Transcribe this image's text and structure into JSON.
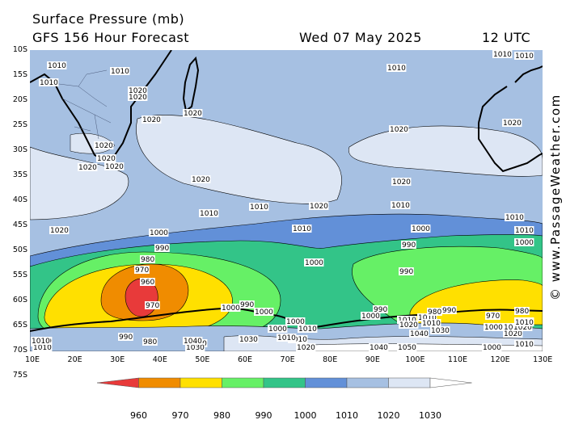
{
  "header": {
    "title": "Surface Pressure (mb)",
    "model": "GFS 156 Hour Forecast",
    "date": "Wed 07 May 2025",
    "time": "12 UTC"
  },
  "watermark": "© www.PassageWeather.com",
  "axes": {
    "lat_labels": [
      "10S",
      "15S",
      "20S",
      "25S",
      "30S",
      "35S",
      "40S",
      "45S",
      "50S",
      "55S",
      "60S",
      "65S",
      "70S",
      "75S"
    ],
    "lon_labels": [
      "10E",
      "20E",
      "30E",
      "40E",
      "50E",
      "60E",
      "70E",
      "80E",
      "90E",
      "100E",
      "110E",
      "120E",
      "130E"
    ]
  },
  "isobar_labels": [
    "1010",
    "1010",
    "1010",
    "1010",
    "1010",
    "1010",
    "1020",
    "1020",
    "1020",
    "1020",
    "1020",
    "1020",
    "1020",
    "1020",
    "1020",
    "1020",
    "1020",
    "1020",
    "1020",
    "1020",
    "1010",
    "1010",
    "1010",
    "1010",
    "1010",
    "1010",
    "1000",
    "1000",
    "1000",
    "1000",
    "990",
    "990",
    "990",
    "980",
    "970",
    "960",
    "970",
    "980",
    "970",
    "980",
    "990",
    "1000",
    "1000",
    "1000",
    "990",
    "1000",
    "1010",
    "1010",
    "1010",
    "1000",
    "1000",
    "1000",
    "990",
    "1010",
    "1040",
    "1030",
    "1030",
    "1040",
    "1050",
    "1020",
    "1020",
    "1030",
    "1040",
    "1010",
    "1020",
    "1010",
    "980",
    "990",
    "1010",
    "1000",
    "1020",
    "1010",
    "1010",
    "1010",
    "1040",
    "1010",
    "1010",
    "1010",
    "1010"
  ],
  "legend": {
    "colors": [
      "#e83a3a",
      "#f08c00",
      "#ffe000",
      "#66f066",
      "#33c488",
      "#6290d8",
      "#a6c0e2",
      "#dde6f4",
      "#ffffff"
    ],
    "labels": [
      "960",
      "970",
      "980",
      "990",
      "1000",
      "1010",
      "1020",
      "1030"
    ]
  }
}
